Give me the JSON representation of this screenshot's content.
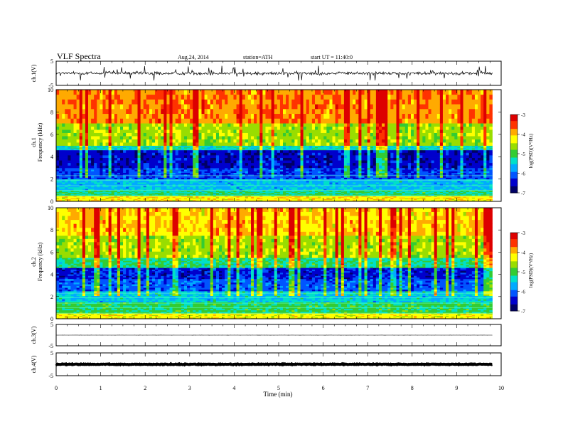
{
  "header": {
    "title": "VLF Spectra",
    "date": "Aug.24, 2014",
    "station": "station=ATH",
    "start_time": "start UT = 11:40:0"
  },
  "chart_data": [
    {
      "type": "line",
      "panel": "ch1-waveform",
      "ylabel": "ch.1(V)",
      "ylim": [
        -5,
        5
      ],
      "y_ticks": [
        "5",
        "-5"
      ],
      "x_range_min": [
        0,
        9.8
      ],
      "description_values": {
        "baseline_V": 0.0,
        "noise_amplitude_V": 1.0,
        "spike_amplitude_V": 3.0
      },
      "line_color": "#000000"
    },
    {
      "type": "heatmap",
      "panel": "ch1-spectrogram",
      "ylabel_channel": "ch.1",
      "ylabel": "Frequency (kHz)",
      "ylim": [
        0,
        10
      ],
      "y_ticks": [
        "0",
        "2",
        "4",
        "6",
        "8",
        "10"
      ],
      "x_range_min": [
        0,
        9.8
      ],
      "colorbar": {
        "label": "log(PSD)(V²/Hz)",
        "range": [
          -7,
          -3
        ],
        "ticks": [
          "-3",
          "-4",
          "-5",
          "-6",
          "-7"
        ]
      },
      "band_log_psd": [
        {
          "f_kHz": [
            0,
            0.5
          ],
          "value": -4.2
        },
        {
          "f_kHz": [
            0.5,
            1.0
          ],
          "value": -5.2
        },
        {
          "f_kHz": [
            1.0,
            2.0
          ],
          "value": -5.6
        },
        {
          "f_kHz": [
            2.0,
            3.0
          ],
          "value": -6.2
        },
        {
          "f_kHz": [
            3.0,
            4.6
          ],
          "value": -6.5
        },
        {
          "f_kHz": [
            4.6,
            5.0
          ],
          "value": -5.4
        },
        {
          "f_kHz": [
            5.0,
            7.0
          ],
          "value": -4.6
        },
        {
          "f_kHz": [
            7.0,
            10.0
          ],
          "value": -3.8
        }
      ]
    },
    {
      "type": "heatmap",
      "panel": "ch2-spectrogram",
      "ylabel_channel": "ch.2",
      "ylabel": "Frequency (kHz)",
      "ylim": [
        0,
        10
      ],
      "y_ticks": [
        "0",
        "2",
        "4",
        "6",
        "8",
        "10"
      ],
      "x_range_min": [
        0,
        9.8
      ],
      "colorbar": {
        "label": "log(PSD)(V²/Hz)",
        "range": [
          -7,
          -3
        ],
        "ticks": [
          "-3",
          "-4",
          "-5",
          "-6",
          "-7"
        ]
      },
      "band_log_psd": [
        {
          "f_kHz": [
            0,
            0.5
          ],
          "value": -4.3
        },
        {
          "f_kHz": [
            0.5,
            1.5
          ],
          "value": -5.1
        },
        {
          "f_kHz": [
            1.5,
            2.5
          ],
          "value": -5.5
        },
        {
          "f_kHz": [
            2.5,
            3.6
          ],
          "value": -6.1
        },
        {
          "f_kHz": [
            3.6,
            4.6
          ],
          "value": -6.4
        },
        {
          "f_kHz": [
            4.6,
            5.5
          ],
          "value": -5.2
        },
        {
          "f_kHz": [
            5.5,
            7.5
          ],
          "value": -4.6
        },
        {
          "f_kHz": [
            7.5,
            10.0
          ],
          "value": -4.1
        }
      ]
    },
    {
      "type": "line",
      "panel": "ch3-waveform",
      "ylabel": "ch.3(V)",
      "ylim": [
        -5,
        5
      ],
      "y_ticks": [
        "5",
        "-5"
      ],
      "x_range_min": [
        0,
        9.8
      ],
      "description_values": {
        "baseline_V": 0.0,
        "noise_amplitude_V": 0.05
      },
      "line_color": "#000000"
    },
    {
      "type": "line",
      "panel": "ch4-waveform",
      "ylabel": "ch.4(V)",
      "ylim": [
        -5,
        5
      ],
      "y_ticks": [
        "5",
        "-5"
      ],
      "x_range_min": [
        0,
        9.8
      ],
      "description_values": {
        "baseline_V": 0.0,
        "noise_amplitude_V": 0.25
      },
      "line_color": "#000000"
    }
  ],
  "x_axis": {
    "label": "Time (min)",
    "ticks": [
      "0",
      "1",
      "2",
      "3",
      "4",
      "5",
      "6",
      "7",
      "8",
      "9",
      "10"
    ],
    "range": [
      0,
      10
    ]
  },
  "colormap": [
    "#000066",
    "#0000cc",
    "#0055ff",
    "#00aaff",
    "#00e0c8",
    "#33cc33",
    "#99dd00",
    "#ffff00",
    "#ffaa00",
    "#ff3300",
    "#dd0000",
    "#ffffff"
  ]
}
